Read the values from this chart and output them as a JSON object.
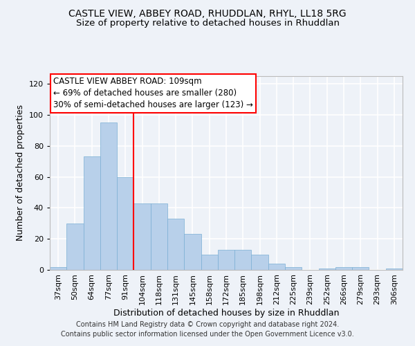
{
  "title_line1": "CASTLE VIEW, ABBEY ROAD, RHUDDLAN, RHYL, LL18 5RG",
  "title_line2": "Size of property relative to detached houses in Rhuddlan",
  "xlabel": "Distribution of detached houses by size in Rhuddlan",
  "ylabel": "Number of detached properties",
  "categories": [
    "37sqm",
    "50sqm",
    "64sqm",
    "77sqm",
    "91sqm",
    "104sqm",
    "118sqm",
    "131sqm",
    "145sqm",
    "158sqm",
    "172sqm",
    "185sqm",
    "198sqm",
    "212sqm",
    "225sqm",
    "239sqm",
    "252sqm",
    "266sqm",
    "279sqm",
    "293sqm",
    "306sqm"
  ],
  "values": [
    2,
    30,
    73,
    95,
    60,
    43,
    43,
    33,
    23,
    10,
    13,
    13,
    10,
    4,
    2,
    0,
    1,
    2,
    2,
    0,
    1
  ],
  "bar_color": "#b8d0ea",
  "bar_edge_color": "#7aafd4",
  "annotation_text_line1": "CASTLE VIEW ABBEY ROAD: 109sqm",
  "annotation_text_line2": "← 69% of detached houses are smaller (280)",
  "annotation_text_line3": "30% of semi-detached houses are larger (123) →",
  "annotation_box_color": "white",
  "annotation_box_edge_color": "red",
  "vline_color": "red",
  "vline_x_index": 5,
  "ylim": [
    0,
    125
  ],
  "yticks": [
    0,
    20,
    40,
    60,
    80,
    100,
    120
  ],
  "footer_line1": "Contains HM Land Registry data © Crown copyright and database right 2024.",
  "footer_line2": "Contains public sector information licensed under the Open Government Licence v3.0.",
  "background_color": "#eef2f8",
  "grid_color": "white",
  "title_fontsize": 10,
  "subtitle_fontsize": 9.5,
  "axis_label_fontsize": 9,
  "tick_fontsize": 8,
  "annotation_fontsize": 8.5,
  "footer_fontsize": 7
}
